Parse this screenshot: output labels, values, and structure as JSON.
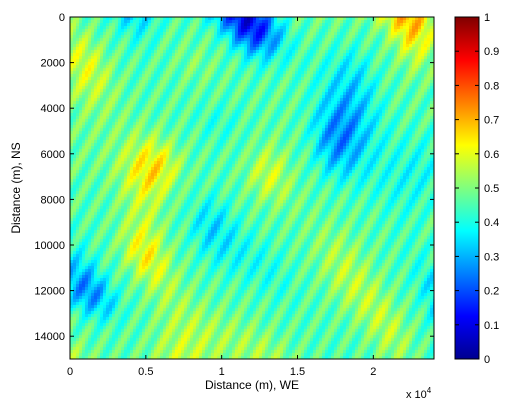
{
  "chart_data": {
    "type": "heatmap",
    "title": "",
    "xlabel": "Distance (m), WE",
    "ylabel": "Distance (m), NS",
    "xlim": [
      0,
      24000
    ],
    "ylim": [
      0,
      15000
    ],
    "y_reversed": true,
    "x_ticks": [
      0,
      5000,
      10000,
      15000,
      20000
    ],
    "x_tick_labels": [
      "0",
      "0.5",
      "1",
      "1.5",
      "2"
    ],
    "x_multiplier_label": "x 10",
    "x_multiplier_exponent": "4",
    "y_ticks": [
      0,
      2000,
      4000,
      6000,
      8000,
      10000,
      12000,
      14000
    ],
    "y_tick_labels": [
      "0",
      "2000",
      "4000",
      "6000",
      "8000",
      "10000",
      "12000",
      "14000"
    ],
    "colorbar": {
      "colormap": "jet",
      "range": [
        0,
        1
      ],
      "ticks": [
        0,
        0.1,
        0.2,
        0.3,
        0.4,
        0.5,
        0.6,
        0.7,
        0.8,
        0.9,
        1
      ],
      "tick_labels": [
        "0",
        "0.1",
        "0.2",
        "0.3",
        "0.4",
        "0.5",
        "0.6",
        "0.7",
        "0.8",
        "0.9",
        "1"
      ]
    },
    "grid": false
  }
}
